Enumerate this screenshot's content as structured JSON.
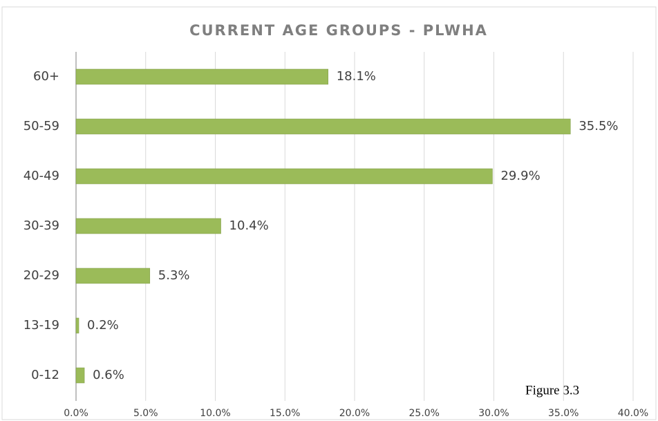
{
  "chart_data": {
    "type": "bar",
    "orientation": "horizontal",
    "title": "CURRENT AGE GROUPS - PLWHA",
    "categories": [
      "60+",
      "50-59",
      "40-49",
      "30-39",
      "20-29",
      "13-19",
      "0-12"
    ],
    "values": [
      18.1,
      35.5,
      29.9,
      10.4,
      5.3,
      0.2,
      0.6
    ],
    "value_labels": [
      "18.1%",
      "35.5%",
      "29.9%",
      "10.4%",
      "5.3%",
      "0.2%",
      "0.6%"
    ],
    "color": "#9bbb59",
    "xlim": [
      0,
      40
    ],
    "xticks": [
      {
        "value": 0,
        "label": "0.0%"
      },
      {
        "value": 5,
        "label": "5.0%"
      },
      {
        "value": 10,
        "label": "10.0%"
      },
      {
        "value": 15,
        "label": "15.0%"
      },
      {
        "value": 20,
        "label": "20.0%"
      },
      {
        "value": 25,
        "label": "25.0%"
      },
      {
        "value": 30,
        "label": "30.0%"
      },
      {
        "value": 35,
        "label": "35.0%"
      },
      {
        "value": 40,
        "label": "40.0%"
      }
    ],
    "grid": true,
    "annotation": "Figure 3.3"
  }
}
